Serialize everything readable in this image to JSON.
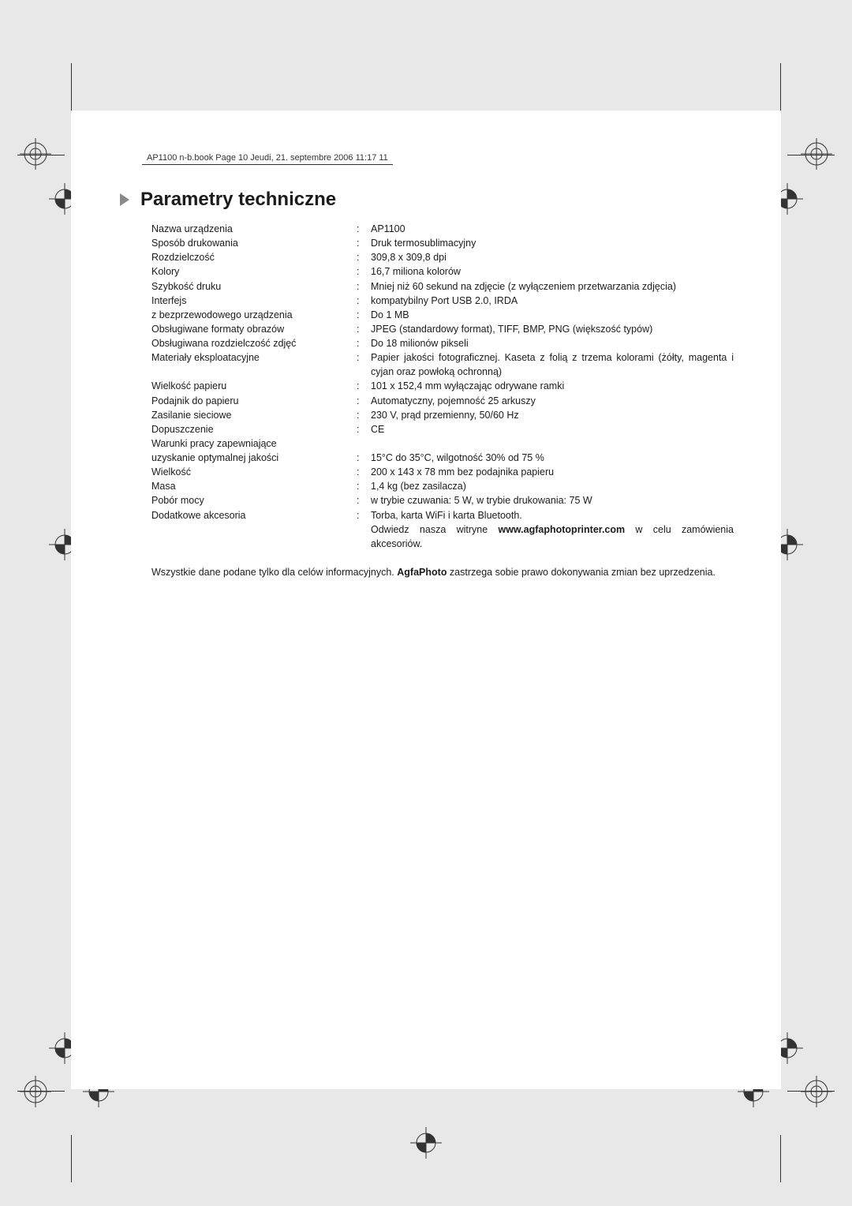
{
  "runhead": "AP1100 n-b.book  Page 10  Jeudi, 21. septembre 2006  11:17 11",
  "title": "Parametry techniczne",
  "specs": [
    {
      "label": "Nazwa urządzenia",
      "value": "AP1100"
    },
    {
      "label": "Sposób drukowania",
      "value": "Druk termosublimacyjny"
    },
    {
      "label": "Rozdzielczość",
      "value": "309,8 x 309,8 dpi"
    },
    {
      "label": "Kolory",
      "value": "16,7 miliona kolorów"
    },
    {
      "label": "Szybkość druku",
      "value": "Mniej niż 60 sekund na zdjęcie (z wyłączeniem przetwarzania zdjęcia)"
    },
    {
      "label": "Interfejs",
      "value": "kompatybilny Port USB 2.0, IRDA"
    },
    {
      "label": "z bezprzewodowego urządzenia",
      "value": "Do 1 MB"
    },
    {
      "label": "Obsługiwane formaty obrazów",
      "value": "JPEG (standardowy format), TIFF, BMP, PNG (większość typów)"
    },
    {
      "label": "Obsługiwana rozdzielczość zdjęć",
      "value": "Do 18 milionów pikseli"
    },
    {
      "label": "Materiały eksploatacyjne",
      "value": "Papier jakości fotograficznej. Kaseta z folią z trzema kolorami (żółty, magenta i cyjan oraz powłoką ochronną)"
    },
    {
      "label": "Wielkość papieru",
      "value": "101 x 152,4 mm wyłączając odrywane ramki"
    },
    {
      "label": "Podajnik do papieru",
      "value": "Automatyczny, pojemność 25 arkuszy"
    },
    {
      "label": "Zasilanie sieciowe",
      "value": "230 V, prąd przemienny, 50/60 Hz"
    },
    {
      "label": "Dopuszczenie",
      "value": "CE"
    },
    {
      "label": "Warunki pracy zapewniające",
      "value": ""
    },
    {
      "label": "uzyskanie optymalnej jakości",
      "value": "15°C do 35°C, wilgotność 30% od 75 %"
    },
    {
      "label": "Wielkość",
      "value": "200 x 143 x 78 mm bez podajnika papieru"
    },
    {
      "label": "Masa",
      "value": "1,4 kg (bez zasilacza)"
    },
    {
      "label": "Pobór mocy",
      "value": "w trybie czuwania: 5 W, w trybie drukowania: 75 W"
    },
    {
      "label": "Dodatkowe akcesoria",
      "value": "Torba, karta WiFi i karta Bluetooth."
    }
  ],
  "specs_tail": [
    {
      "label": "",
      "value_html": "Odwiedz nasza witryne <b>www.agfaphotoprinter.com</b> w celu zamówienia akcesoriów."
    }
  ],
  "footnote_pre": "Wszystkie dane podane tylko dla celów informacyjnych. ",
  "footnote_bold": "AgfaPhoto",
  "footnote_post": " zastrzega sobie prawo dokonywania zmian bez uprzedzenia.",
  "page_number": "10",
  "colors": {
    "page_bg": "#ffffff",
    "body_bg": "#e8e8e8",
    "text": "#1b1b1b",
    "arrow": "#8a8a8a"
  }
}
